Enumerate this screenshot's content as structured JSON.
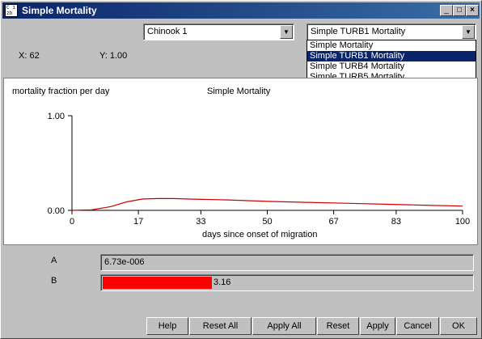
{
  "window": {
    "title": "Simple Mortality",
    "icon_text": "C 1\nzb"
  },
  "controls": {
    "minimize": "_",
    "maximize": "□",
    "close": "×"
  },
  "fish_select": {
    "value": "Chinook 1"
  },
  "model_select": {
    "value": "Simple TURB1 Mortality",
    "options": [
      "Simple Mortality",
      "Simple TURB1 Mortality",
      "Simple TURB4 Mortality",
      "Simple TURB5 Mortality"
    ],
    "selected_index": 1
  },
  "cursor": {
    "x_label": "X: 62",
    "y_label": "Y: 1.00"
  },
  "chart_data": {
    "type": "line",
    "title": "Simple Mortality",
    "ylabel": "mortality fraction per day",
    "xlabel": "days since onset of migration",
    "xlim": [
      0,
      100
    ],
    "ylim": [
      0,
      1
    ],
    "x_ticks": [
      "0",
      "17",
      "33",
      "50",
      "67",
      "83",
      "100"
    ],
    "y_ticks": [
      "0.00",
      "1.00"
    ],
    "series": [
      {
        "color": "#cc0000",
        "x": [
          0,
          5,
          10,
          14,
          18,
          22,
          26,
          30,
          40,
          50,
          60,
          70,
          80,
          90,
          100
        ],
        "y": [
          0.0,
          0.005,
          0.04,
          0.09,
          0.12,
          0.125,
          0.125,
          0.12,
          0.11,
          0.095,
          0.085,
          0.075,
          0.065,
          0.055,
          0.045
        ]
      }
    ]
  },
  "params": [
    {
      "label": "A",
      "value": "6.73e-006",
      "fill_fraction": 0.0
    },
    {
      "label": "B",
      "value": "3.16",
      "fill_fraction": 0.295
    }
  ],
  "buttons": [
    "Help",
    "Reset All",
    "Apply All",
    "Reset",
    "Apply",
    "Cancel",
    "OK"
  ]
}
